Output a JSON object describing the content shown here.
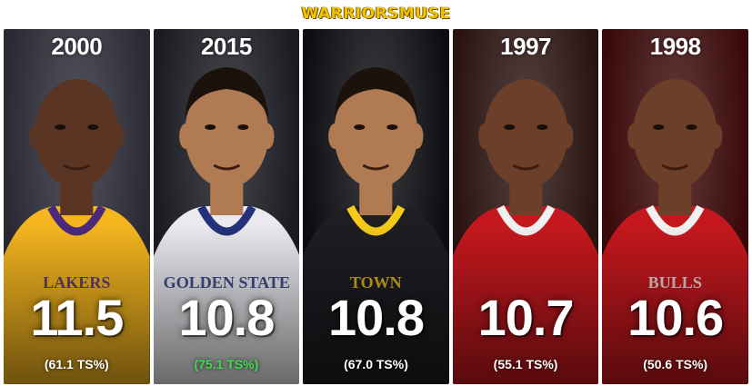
{
  "banner": {
    "title": "WARRIORSMUSE"
  },
  "panels": [
    {
      "year": "2000",
      "stat": "11.5",
      "ts": "(61.1 TS%)",
      "ts_highlight": false,
      "jersey": "LAKERS",
      "colors": {
        "bg": "#2a2a35",
        "jersey": "#f4b51f",
        "trim": "#4a2a7a",
        "skin": "#5a3524"
      }
    },
    {
      "year": "2015",
      "stat": "10.8",
      "ts": "(75.1 TS%)",
      "ts_highlight": true,
      "jersey": "GOLDEN STATE",
      "colors": {
        "bg": "#1b1b22",
        "jersey": "#e9e9ee",
        "trim": "#23327a",
        "skin": "#b07a52"
      }
    },
    {
      "year": "",
      "stat": "10.8",
      "ts": "(67.0 TS%)",
      "ts_highlight": false,
      "jersey": "TOWN",
      "colors": {
        "bg": "#0e0e12",
        "jersey": "#1d1d22",
        "trim": "#f4c918",
        "skin": "#b07a52"
      }
    },
    {
      "year": "1997",
      "stat": "10.7",
      "ts": "(55.1 TS%)",
      "ts_highlight": false,
      "jersey": "",
      "colors": {
        "bg": "#2a1410",
        "jersey": "#c4181e",
        "trim": "#f1f1f1",
        "skin": "#6b3f2a"
      }
    },
    {
      "year": "1998",
      "stat": "10.6",
      "ts": "(50.6 TS%)",
      "ts_highlight": false,
      "jersey": "BULLS",
      "colors": {
        "bg": "#3a0a0a",
        "jersey": "#c4181e",
        "trim": "#f1f1f1",
        "skin": "#6b3f2a"
      }
    }
  ]
}
